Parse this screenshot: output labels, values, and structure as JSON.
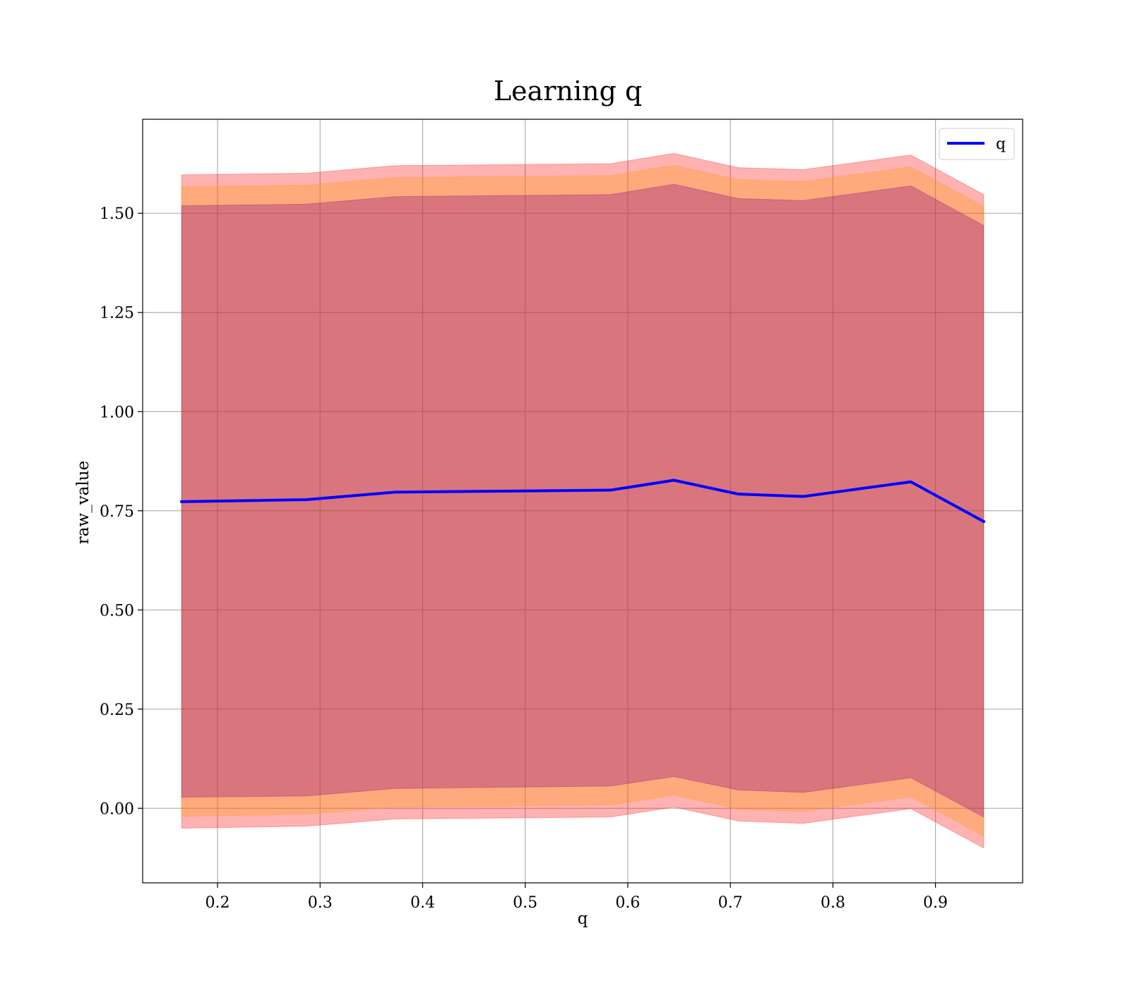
{
  "chart_data": {
    "type": "line",
    "title": "Learning q",
    "xlabel": "q",
    "ylabel": "raw_value",
    "xlim": [
      0.127,
      0.985
    ],
    "ylim": [
      -0.188,
      1.737
    ],
    "xticks": [
      0.2,
      0.3,
      0.4,
      0.5,
      0.6,
      0.7,
      0.8,
      0.9
    ],
    "xtick_labels": [
      "0.2",
      "0.3",
      "0.4",
      "0.5",
      "0.6",
      "0.7",
      "0.8",
      "0.9"
    ],
    "yticks": [
      0.0,
      0.25,
      0.5,
      0.75,
      1.0,
      1.25,
      1.5
    ],
    "ytick_labels": [
      "0.00",
      "0.25",
      "0.50",
      "0.75",
      "1.00",
      "1.25",
      "1.50"
    ],
    "grid": true,
    "legend": {
      "position": "top-right",
      "entries": [
        {
          "label": "q",
          "color": "#0000ff"
        }
      ]
    },
    "x": [
      0.165,
      0.287,
      0.373,
      0.583,
      0.645,
      0.708,
      0.771,
      0.876,
      0.947
    ],
    "series": [
      {
        "name": "q",
        "color": "#0000ff",
        "values": [
          0.773,
          0.778,
          0.797,
          0.802,
          0.827,
          0.792,
          0.786,
          0.823,
          0.723
        ]
      }
    ],
    "bands": [
      {
        "color": "#ff0000",
        "opacity": 0.3,
        "lower": [
          -0.05,
          -0.045,
          -0.027,
          -0.022,
          0.003,
          -0.032,
          -0.038,
          -0.001,
          -0.1
        ],
        "upper": [
          1.597,
          1.601,
          1.62,
          1.625,
          1.651,
          1.615,
          1.61,
          1.647,
          1.547
        ]
      },
      {
        "color": "#ff9900",
        "opacity": 0.3,
        "lower": [
          -0.02,
          -0.015,
          0.003,
          0.008,
          0.033,
          -0.002,
          -0.008,
          0.029,
          -0.07
        ],
        "upper": [
          1.567,
          1.571,
          1.59,
          1.595,
          1.621,
          1.585,
          1.58,
          1.617,
          1.517
        ]
      },
      {
        "color": "#800080",
        "opacity": 0.3,
        "lower": [
          0.028,
          0.031,
          0.05,
          0.056,
          0.08,
          0.046,
          0.04,
          0.077,
          -0.022
        ],
        "upper": [
          1.519,
          1.523,
          1.542,
          1.547,
          1.573,
          1.537,
          1.532,
          1.569,
          1.469
        ]
      }
    ]
  }
}
